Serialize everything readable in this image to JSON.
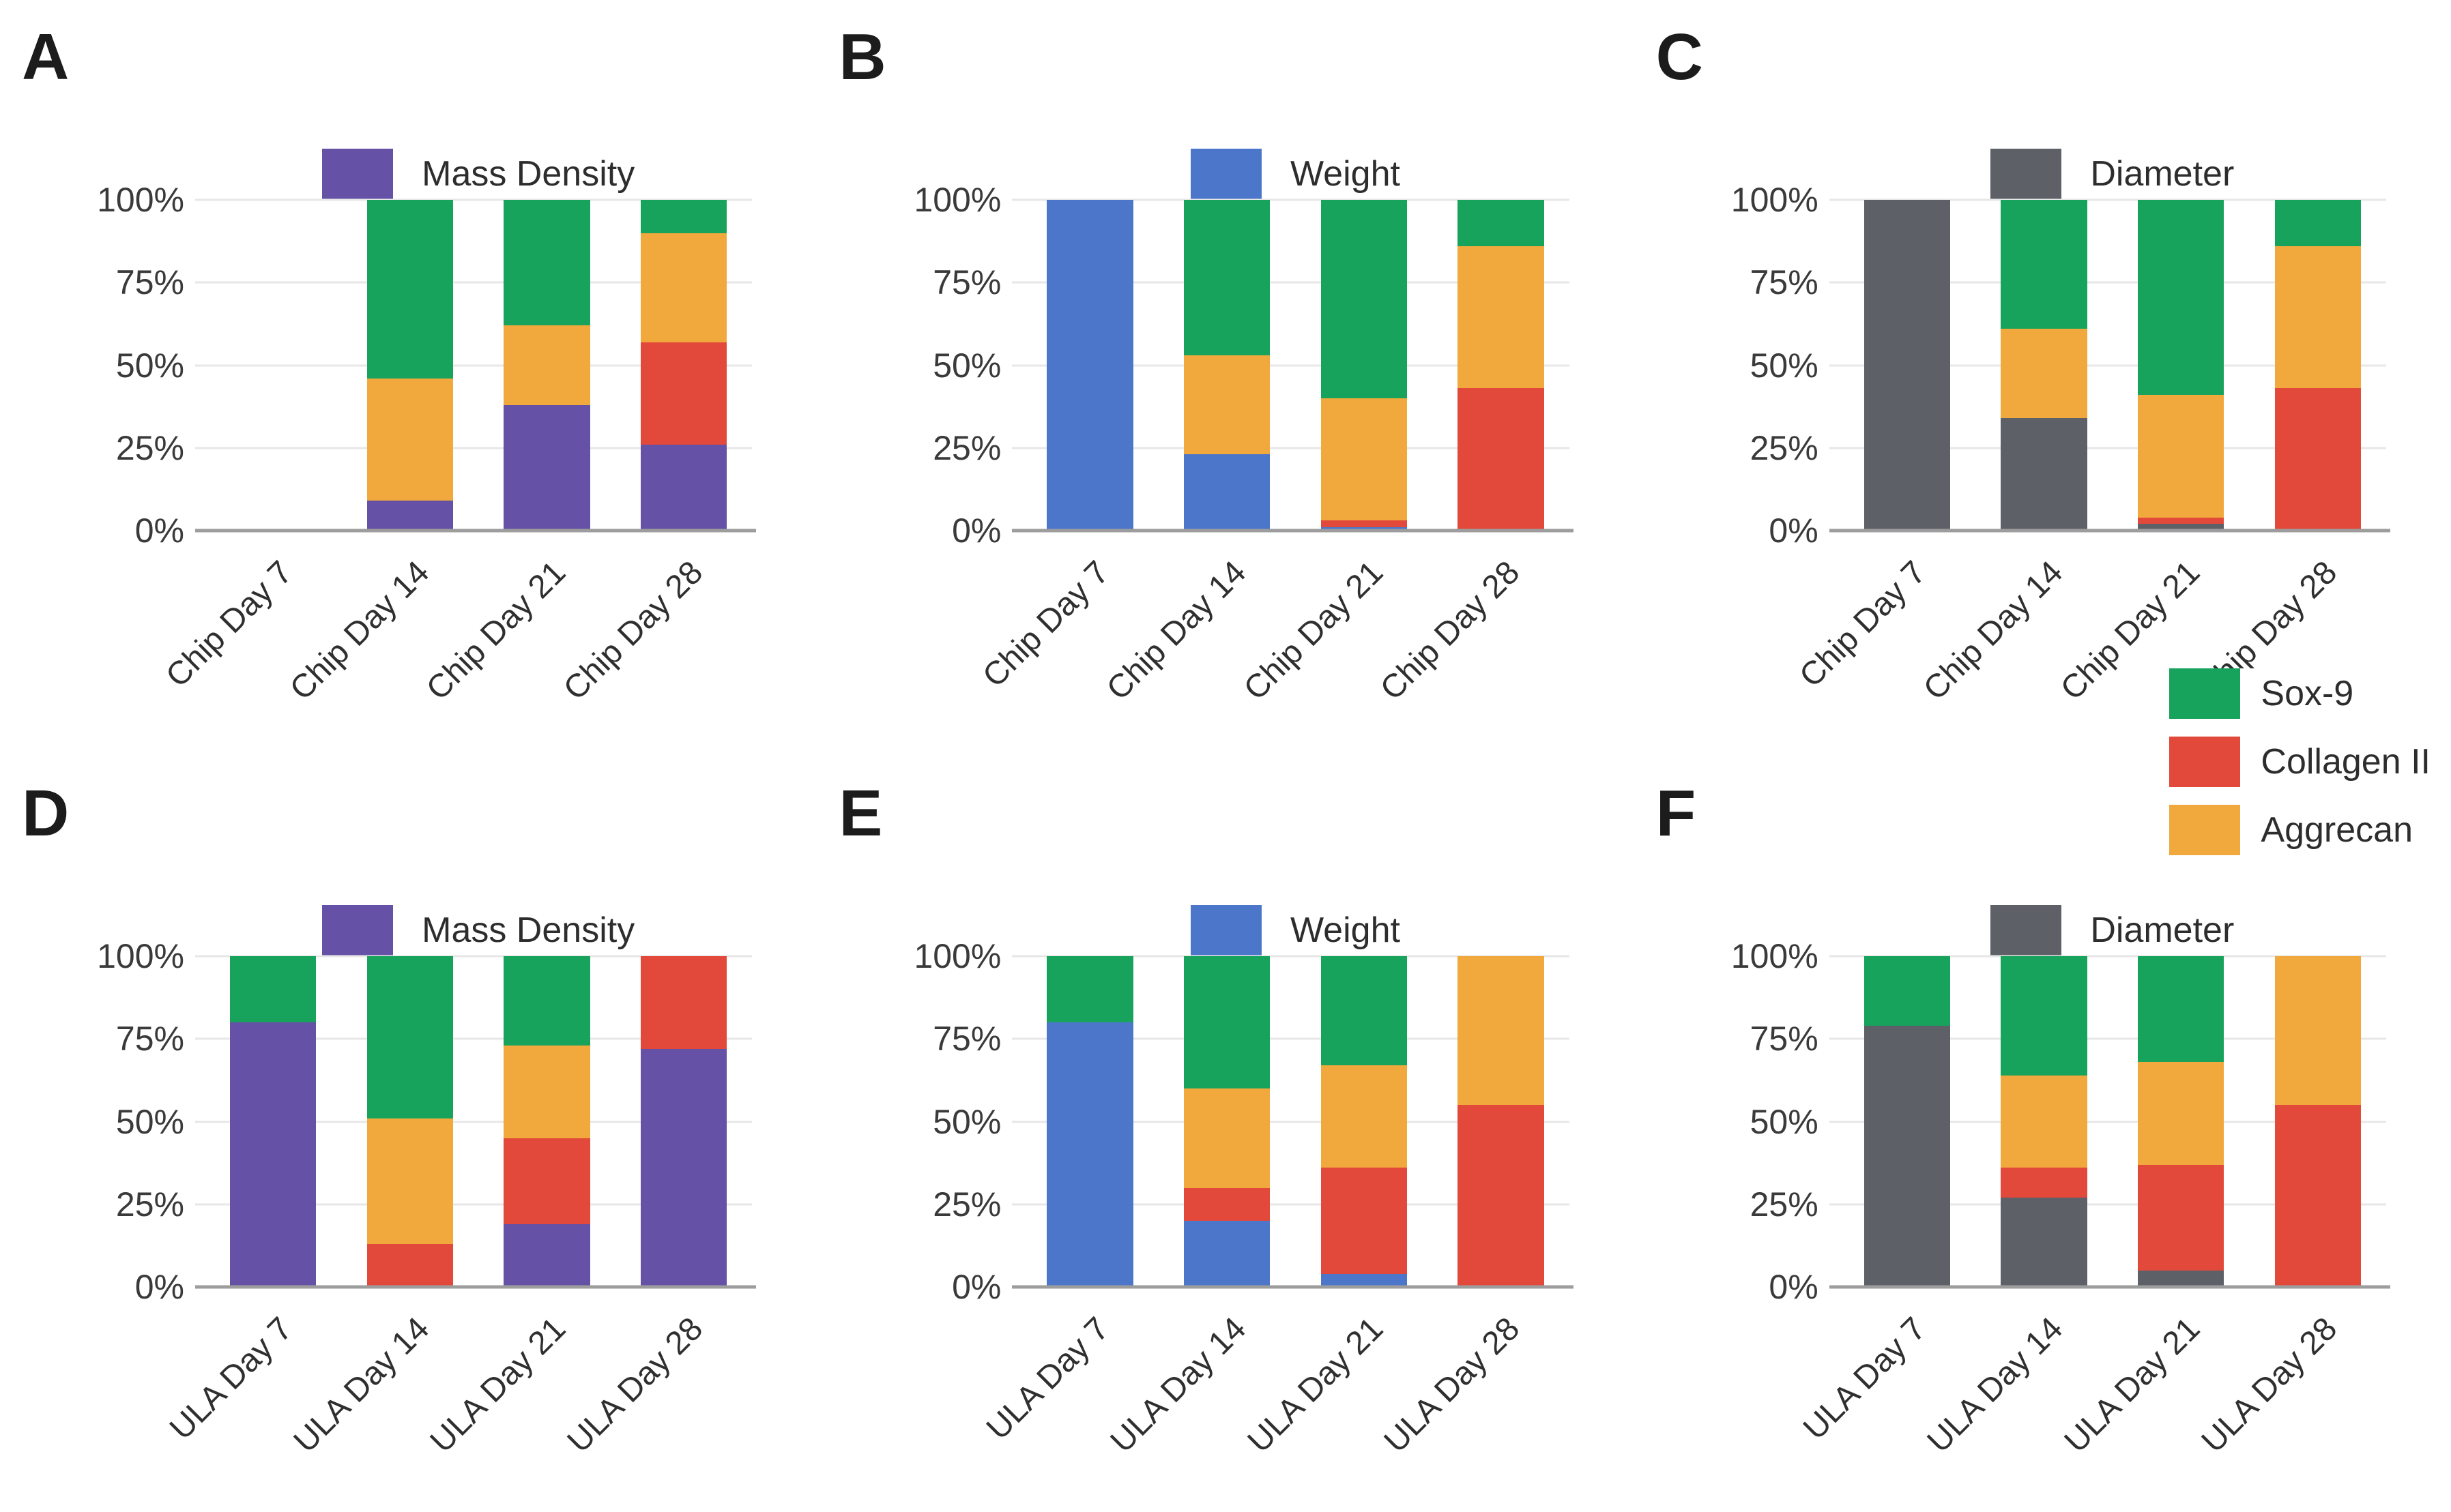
{
  "colors": {
    "sox9": "#17a35c",
    "collagen": "#e2493b",
    "aggrecan": "#f1a83c",
    "mass_density": "#6551a5",
    "weight": "#4b76c9",
    "diameter": "#5d6066",
    "gridline": "#e7e7e7",
    "baseline": "#9d9d9d",
    "text": "#2f2f2f"
  },
  "y_axis": {
    "ticks": [
      {
        "label": "0%",
        "value": 0
      },
      {
        "label": "25%",
        "value": 25
      },
      {
        "label": "50%",
        "value": 50
      },
      {
        "label": "75%",
        "value": 75
      },
      {
        "label": "100%",
        "value": 100
      }
    ]
  },
  "shared_legend": {
    "items": [
      {
        "label": "Sox-9",
        "color_key": "sox9"
      },
      {
        "label": "Collagen II",
        "color_key": "collagen"
      },
      {
        "label": "Aggrecan",
        "color_key": "aggrecan"
      }
    ]
  },
  "chart_data": [
    {
      "panel": "A",
      "type": "bar",
      "stacked": true,
      "ylim": [
        0,
        100
      ],
      "grid": true,
      "legend": {
        "label": "Mass Density",
        "color_key": "mass_density",
        "position": "top-center"
      },
      "categories": [
        "Chip Day 7",
        "Chip Day 14",
        "Chip Day 21",
        "Chip Day 28"
      ],
      "series": [
        {
          "name": "Mass Density",
          "color_key": "mass_density",
          "values": [
            0,
            9,
            38,
            26
          ]
        },
        {
          "name": "Collagen II",
          "color_key": "collagen",
          "values": [
            0,
            0,
            0,
            31
          ]
        },
        {
          "name": "Aggrecan",
          "color_key": "aggrecan",
          "values": [
            0,
            37,
            24,
            33
          ]
        },
        {
          "name": "Sox-9",
          "color_key": "sox9",
          "values": [
            0,
            54,
            38,
            10
          ]
        }
      ]
    },
    {
      "panel": "B",
      "type": "bar",
      "stacked": true,
      "ylim": [
        0,
        100
      ],
      "grid": true,
      "legend": {
        "label": "Weight",
        "color_key": "weight",
        "position": "top-center"
      },
      "categories": [
        "Chip Day 7",
        "Chip Day 14",
        "Chip Day 21",
        "Chip Day 28"
      ],
      "series": [
        {
          "name": "Weight",
          "color_key": "weight",
          "values": [
            100,
            23,
            1,
            0
          ]
        },
        {
          "name": "Collagen II",
          "color_key": "collagen",
          "values": [
            0,
            0,
            2,
            43
          ]
        },
        {
          "name": "Aggrecan",
          "color_key": "aggrecan",
          "values": [
            0,
            30,
            37,
            43
          ]
        },
        {
          "name": "Sox-9",
          "color_key": "sox9",
          "values": [
            0,
            47,
            60,
            14
          ]
        }
      ]
    },
    {
      "panel": "C",
      "type": "bar",
      "stacked": true,
      "ylim": [
        0,
        100
      ],
      "grid": true,
      "legend": {
        "label": "Diameter",
        "color_key": "diameter",
        "position": "top-center"
      },
      "categories": [
        "Chip Day 7",
        "Chip Day 14",
        "Chip Day 21",
        "Chip Day 28"
      ],
      "series": [
        {
          "name": "Diameter",
          "color_key": "diameter",
          "values": [
            100,
            34,
            2,
            0
          ]
        },
        {
          "name": "Collagen II",
          "color_key": "collagen",
          "values": [
            0,
            0,
            2,
            43
          ]
        },
        {
          "name": "Aggrecan",
          "color_key": "aggrecan",
          "values": [
            0,
            27,
            37,
            43
          ]
        },
        {
          "name": "Sox-9",
          "color_key": "sox9",
          "values": [
            0,
            39,
            59,
            14
          ]
        }
      ]
    },
    {
      "panel": "D",
      "type": "bar",
      "stacked": true,
      "ylim": [
        0,
        100
      ],
      "grid": true,
      "legend": {
        "label": "Mass Density",
        "color_key": "mass_density",
        "position": "top-center"
      },
      "categories": [
        "ULA Day 7",
        "ULA Day 14",
        "ULA Day 21",
        "ULA Day 28"
      ],
      "series": [
        {
          "name": "Mass Density",
          "color_key": "mass_density",
          "values": [
            80,
            0,
            19,
            72
          ]
        },
        {
          "name": "Collagen II",
          "color_key": "collagen",
          "values": [
            0,
            13,
            26,
            28
          ]
        },
        {
          "name": "Aggrecan",
          "color_key": "aggrecan",
          "values": [
            0,
            38,
            28,
            0
          ]
        },
        {
          "name": "Sox-9",
          "color_key": "sox9",
          "values": [
            20,
            49,
            27,
            0
          ]
        }
      ]
    },
    {
      "panel": "E",
      "type": "bar",
      "stacked": true,
      "ylim": [
        0,
        100
      ],
      "grid": true,
      "legend": {
        "label": "Weight",
        "color_key": "weight",
        "position": "top-center"
      },
      "categories": [
        "ULA Day 7",
        "ULA Day 14",
        "ULA Day 21",
        "ULA Day 28"
      ],
      "series": [
        {
          "name": "Weight",
          "color_key": "weight",
          "values": [
            80,
            20,
            4,
            0
          ]
        },
        {
          "name": "Collagen II",
          "color_key": "collagen",
          "values": [
            0,
            10,
            32,
            55
          ]
        },
        {
          "name": "Aggrecan",
          "color_key": "aggrecan",
          "values": [
            0,
            30,
            31,
            45
          ]
        },
        {
          "name": "Sox-9",
          "color_key": "sox9",
          "values": [
            20,
            40,
            33,
            0
          ]
        }
      ]
    },
    {
      "panel": "F",
      "type": "bar",
      "stacked": true,
      "ylim": [
        0,
        100
      ],
      "grid": true,
      "legend": {
        "label": "Diameter",
        "color_key": "diameter",
        "position": "top-center"
      },
      "categories": [
        "ULA Day 7",
        "ULA Day 14",
        "ULA Day 21",
        "ULA Day 28"
      ],
      "series": [
        {
          "name": "Diameter",
          "color_key": "diameter",
          "values": [
            79,
            27,
            5,
            0
          ]
        },
        {
          "name": "Collagen II",
          "color_key": "collagen",
          "values": [
            0,
            9,
            32,
            55
          ]
        },
        {
          "name": "Aggrecan",
          "color_key": "aggrecan",
          "values": [
            0,
            28,
            31,
            45
          ]
        },
        {
          "name": "Sox-9",
          "color_key": "sox9",
          "values": [
            21,
            36,
            32,
            0
          ]
        }
      ]
    }
  ]
}
